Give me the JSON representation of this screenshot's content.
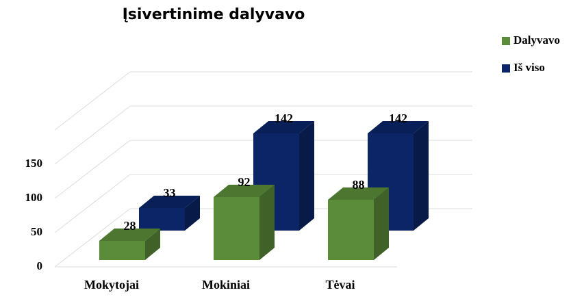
{
  "chart_data": {
    "type": "bar3d",
    "title": "Įsivertinime dalyvavo",
    "categories": [
      "Mokytojai",
      "Mokiniai",
      "Tėvai"
    ],
    "series": [
      {
        "name": "Dalyvavo",
        "color": "#5b8c3a",
        "values": [
          28,
          92,
          88
        ]
      },
      {
        "name": "Iš viso",
        "color": "#0b2566",
        "values": [
          33,
          142,
          142
        ]
      }
    ],
    "ylim": [
      0,
      200
    ],
    "yticks": [
      0,
      50,
      100,
      150
    ],
    "grid": true,
    "legend": "top-right"
  }
}
